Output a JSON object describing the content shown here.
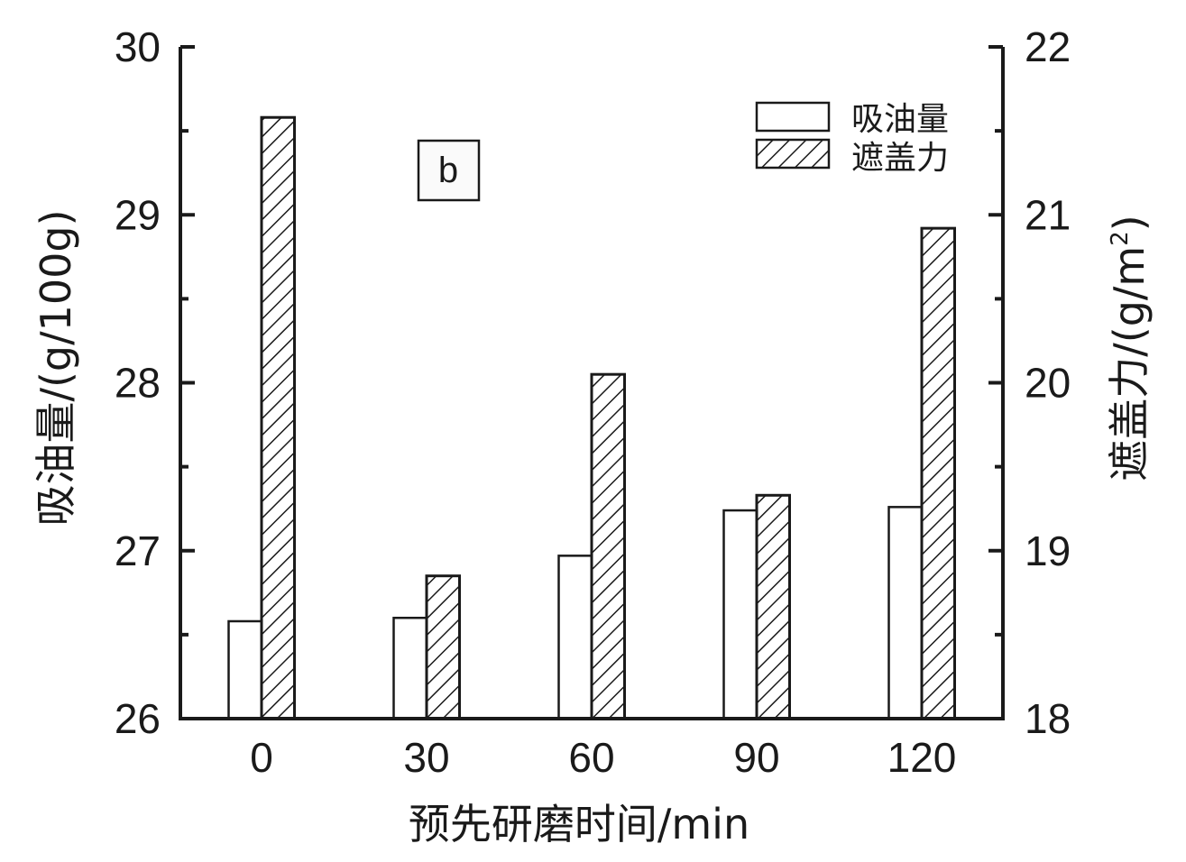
{
  "chart_data": {
    "type": "bar",
    "panel_label": "b",
    "categories": [
      "0",
      "30",
      "60",
      "90",
      "120"
    ],
    "series": [
      {
        "name": "吸油量",
        "axis": "left",
        "fill": "white",
        "values": [
          26.58,
          26.6,
          26.97,
          27.24,
          27.26
        ]
      },
      {
        "name": "遮盖力",
        "axis": "right",
        "fill": "hatched",
        "values": [
          21.58,
          18.85,
          20.05,
          19.33,
          20.92
        ]
      }
    ],
    "xlabel": "预先研磨时间/min",
    "ylabel_left": "吸油量/(g/100g)",
    "ylabel_right": "遮盖力/(g/m²)",
    "ylim_left": [
      26,
      30
    ],
    "ylim_right": [
      18,
      22
    ],
    "yticks_left": [
      "26",
      "27",
      "28",
      "29",
      "30"
    ],
    "yticks_right": [
      "18",
      "19",
      "20",
      "21",
      "22"
    ],
    "grid": false,
    "legend_position": "upper right"
  },
  "labels": {
    "xlabel_main": "预先研磨时间/min",
    "ylabel_left_main": "吸油量/(g/100g)",
    "ylabel_right_main": "遮盖力/(g/m",
    "ylabel_right_sup": "2",
    "ylabel_right_close": ")"
  },
  "colors": {
    "axis": "#1a1a1a",
    "bar_stroke": "#1a1a1a",
    "bar_fill": "#ffffff",
    "background": "#ffffff"
  }
}
